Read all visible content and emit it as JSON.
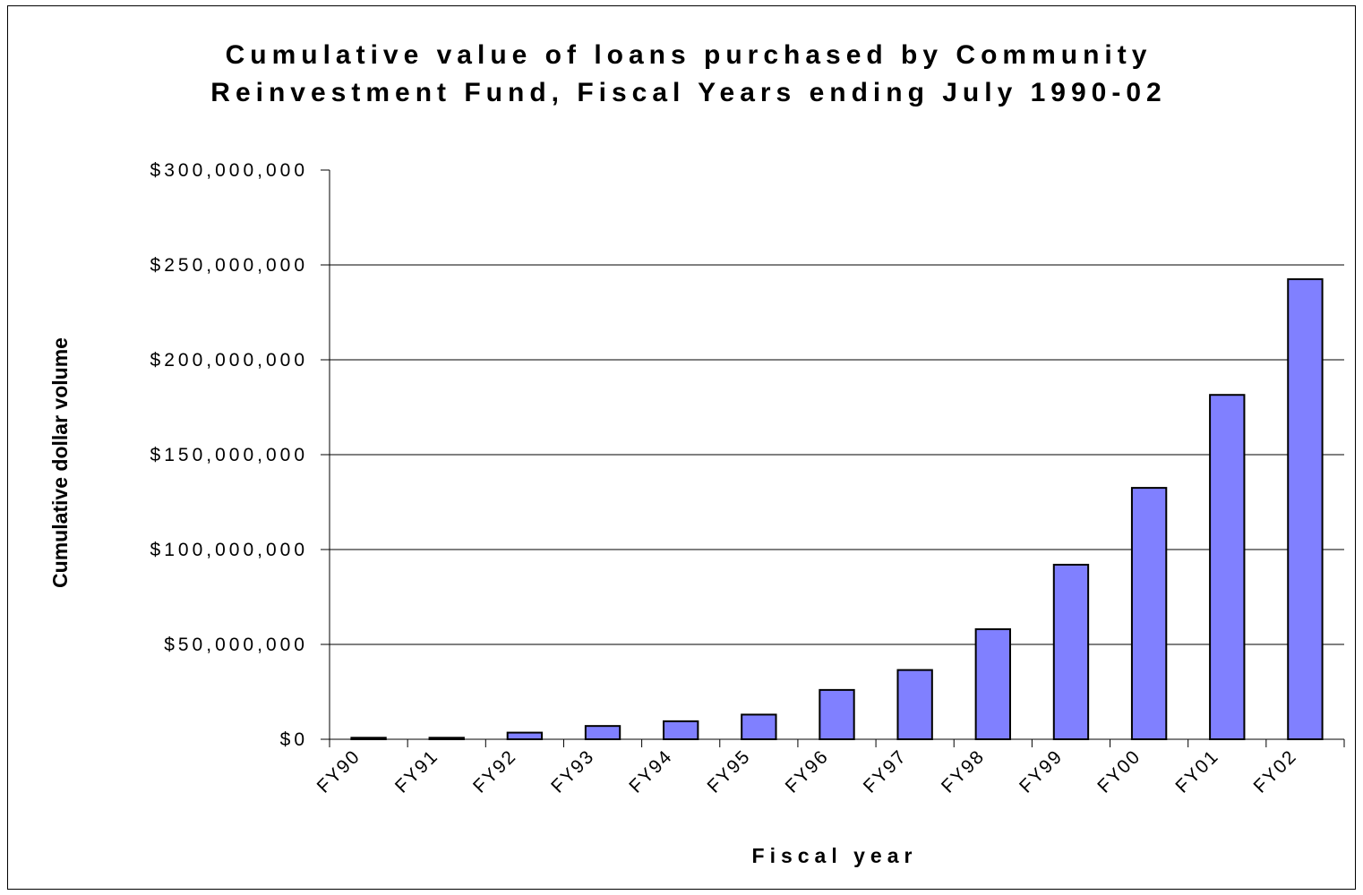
{
  "chart_data": {
    "type": "bar",
    "title_lines": [
      "Cumulative value of loans purchased by Community",
      "Reinvestment Fund, Fiscal Years ending July 1990-02"
    ],
    "xlabel": "Fiscal year",
    "ylabel": "Cumulative dollar volume",
    "categories": [
      "FY90",
      "FY91",
      "FY92",
      "FY93",
      "FY94",
      "FY95",
      "FY96",
      "FY97",
      "FY98",
      "FY99",
      "FY00",
      "FY01",
      "FY02"
    ],
    "values": [
      800000,
      800000,
      3500000,
      7000000,
      9500000,
      13000000,
      26000000,
      36500000,
      58000000,
      92000000,
      132500000,
      181500000,
      242500000
    ],
    "ylim": [
      0,
      300000000
    ],
    "yticks": [
      0,
      50000000,
      100000000,
      150000000,
      200000000,
      250000000,
      300000000
    ],
    "ytick_labels": [
      "$0",
      "$50,000,000",
      "$100,000,000",
      "$150,000,000",
      "$200,000,000",
      "$250,000,000",
      "$300,000,000"
    ],
    "grid": true,
    "bar_color": "#8080ff",
    "bar_edge_color": "#000000"
  }
}
